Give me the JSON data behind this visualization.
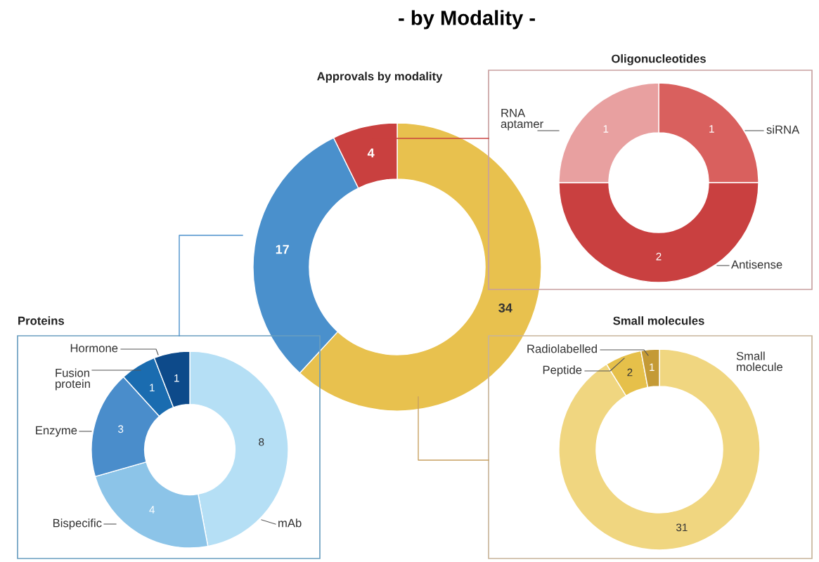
{
  "chart_data": [
    {
      "type": "donut",
      "title": "- by Modality -",
      "subtitle": "Approvals by modality",
      "categories": [
        null,
        null,
        null
      ],
      "values": [
        34,
        17,
        4
      ],
      "colors": [
        "#e8c14e",
        "#4a90cc",
        "#c9403f"
      ],
      "data_labels": true
    },
    {
      "type": "donut",
      "title": "Oligonucleotides",
      "categories": [
        "siRNA",
        "Antisense",
        "RNA\naptamer"
      ],
      "values": [
        1,
        2,
        1
      ],
      "colors": [
        "#d9605e",
        "#c94040",
        "#e8a0a0"
      ],
      "data_labels": true
    },
    {
      "type": "donut",
      "title": "Small molecules",
      "categories": [
        "Small\nmolecule",
        "Peptide",
        "Radiolabelled"
      ],
      "values": [
        31,
        2,
        1
      ],
      "colors": [
        "#f0d680",
        "#e6c04a",
        "#c49a36"
      ],
      "data_labels": true
    },
    {
      "type": "donut",
      "title": "Proteins",
      "categories": [
        "mAb",
        "Bispecific",
        "Enzyme",
        "Fusion\nprotein",
        "Hormone"
      ],
      "values": [
        8,
        4,
        3,
        1,
        1
      ],
      "colors": [
        "#b5dff5",
        "#8cc4e8",
        "#4a8dcb",
        "#1a6cb0",
        "#0d4a8a"
      ],
      "data_labels": true
    }
  ]
}
